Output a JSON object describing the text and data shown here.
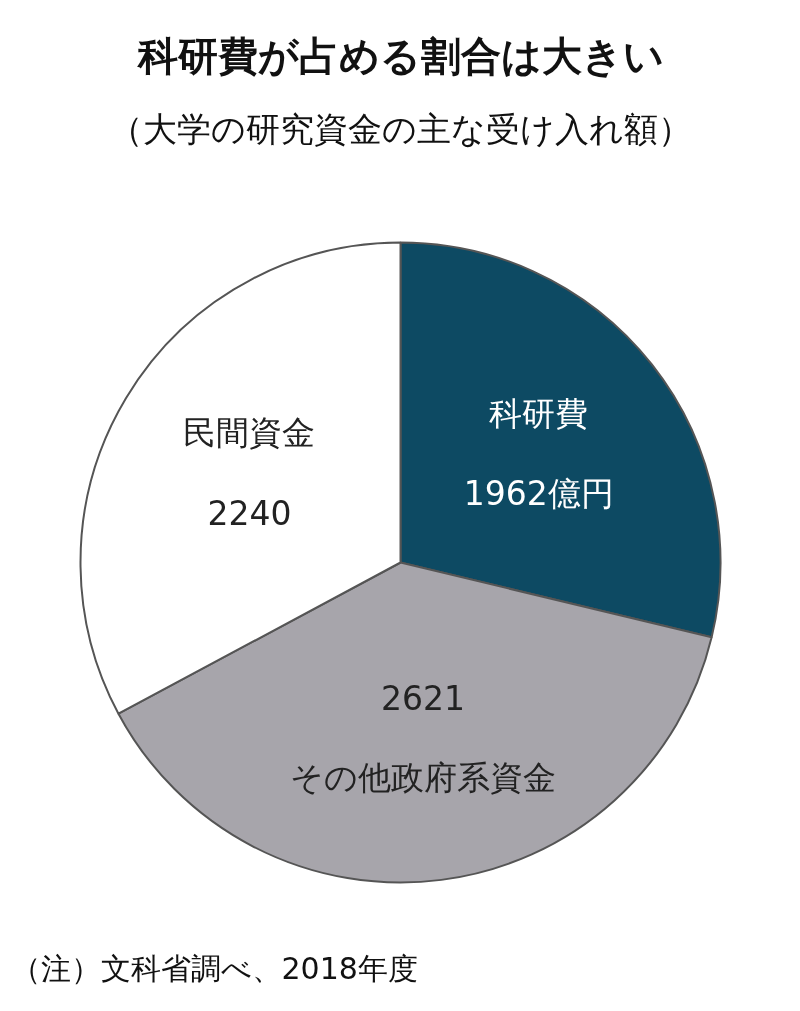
{
  "chart_data": {
    "type": "pie",
    "title": "科研費が占める割合は大きい",
    "subtitle": "（大学の研究資金の主な受け入れ額）",
    "categories": [
      "科研費",
      "その他政府系資金",
      "民間資金"
    ],
    "values": [
      1962,
      2621,
      2240
    ],
    "value_labels": [
      "1962億円",
      "2621",
      "2240"
    ],
    "colors": [
      "#0d4a63",
      "#a7a5ab",
      "#ffffff"
    ],
    "annotations": [
      "（注）文科省調べ、2018年度"
    ]
  }
}
